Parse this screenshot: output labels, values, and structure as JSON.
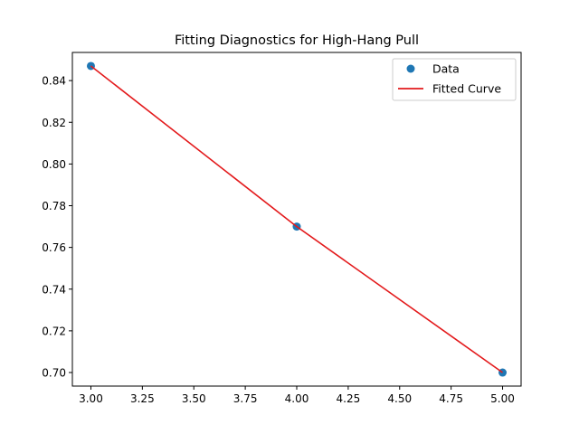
{
  "chart_data": {
    "type": "scatter",
    "title": "Fitting Diagnostics for High-Hang Pull",
    "xlabel": "",
    "ylabel": "",
    "xlim": [
      2.91,
      5.09
    ],
    "ylim": [
      0.6935,
      0.8535
    ],
    "xticks": [
      "3.00",
      "3.25",
      "3.50",
      "3.75",
      "4.00",
      "4.25",
      "4.50",
      "4.75",
      "5.00"
    ],
    "yticks": [
      "0.70",
      "0.72",
      "0.74",
      "0.76",
      "0.78",
      "0.80",
      "0.82",
      "0.84"
    ],
    "grid": false,
    "legend_position": "top-right",
    "series": [
      {
        "name": "Data",
        "kind": "scatter",
        "color": "#1f77b4",
        "x": [
          3,
          4,
          5
        ],
        "y": [
          0.847,
          0.77,
          0.7
        ]
      },
      {
        "name": "Fitted Curve",
        "kind": "line",
        "color": "#e31a1c",
        "x": [
          3,
          4,
          5
        ],
        "y": [
          0.847,
          0.77,
          0.7
        ]
      }
    ]
  }
}
